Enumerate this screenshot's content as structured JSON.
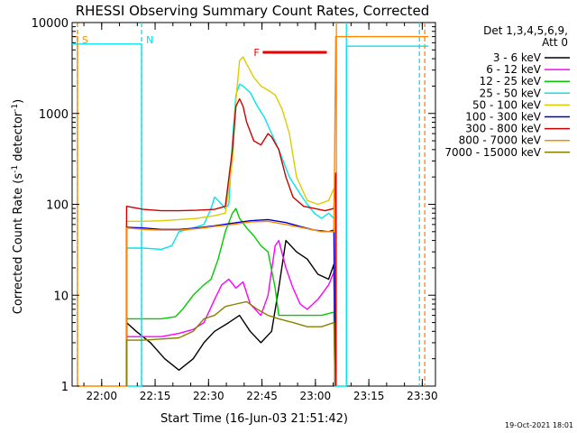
{
  "chart_data": {
    "type": "line",
    "title": "RHESSI Observing Summary Count Rates, Corrected",
    "xlabel": "Start Time (16-Jun-03 21:51:42)",
    "ylabel_prefix": "Corrected Count Rate (s",
    "ylabel_exp": "-1",
    "ylabel_suffix": " detector",
    "ylabel_suffix2": ")",
    "xaxis": {
      "unit": "minutes after 21:51:42",
      "range": [
        0,
        102
      ],
      "ticks": [
        {
          "label": "22:00",
          "t": 8.3
        },
        {
          "label": "22:15",
          "t": 23.3
        },
        {
          "label": "22:30",
          "t": 38.3
        },
        {
          "label": "22:45",
          "t": 53.3
        },
        {
          "label": "23:00",
          "t": 68.3
        },
        {
          "label": "23:15",
          "t": 83.3
        },
        {
          "label": "23:30",
          "t": 98.3
        }
      ]
    },
    "yaxis": {
      "scale": "log",
      "range": [
        1,
        10000
      ],
      "ticks": [
        {
          "label": "1",
          "v": 1
        },
        {
          "label": "10",
          "v": 10
        },
        {
          "label": "100",
          "v": 100
        },
        {
          "label": "1000",
          "v": 1000
        },
        {
          "label": "10000",
          "v": 10000
        }
      ]
    },
    "legend": {
      "header1": "Det 1,3,4,5,6,9,",
      "header2": "Att 0",
      "placement": "right"
    },
    "series": [
      {
        "name": "3 - 6 keV",
        "color": "#000000",
        "points": [
          [
            15.3,
            1
          ],
          [
            15.3,
            5
          ],
          [
            18,
            4
          ],
          [
            22,
            3
          ],
          [
            26,
            2
          ],
          [
            30,
            1.5
          ],
          [
            34,
            2
          ],
          [
            37,
            3
          ],
          [
            40,
            4
          ],
          [
            44,
            5
          ],
          [
            47,
            6
          ],
          [
            50,
            4
          ],
          [
            53,
            3
          ],
          [
            56,
            4
          ],
          [
            58,
            12
          ],
          [
            60,
            40
          ],
          [
            63,
            30
          ],
          [
            66,
            25
          ],
          [
            69,
            17
          ],
          [
            72,
            15
          ],
          [
            73.5,
            22
          ],
          [
            73.8,
            1
          ]
        ]
      },
      {
        "name": "6 - 12 keV",
        "color": "#ff00ff",
        "points": [
          [
            15.3,
            1
          ],
          [
            15.3,
            3.5
          ],
          [
            20,
            3.5
          ],
          [
            25,
            3.5
          ],
          [
            30,
            3.8
          ],
          [
            34,
            4.2
          ],
          [
            37,
            5
          ],
          [
            40,
            9
          ],
          [
            42,
            13
          ],
          [
            44,
            15
          ],
          [
            46,
            12
          ],
          [
            48,
            14
          ],
          [
            50,
            8
          ],
          [
            53,
            6
          ],
          [
            55,
            10
          ],
          [
            57,
            35
          ],
          [
            58,
            40
          ],
          [
            60,
            20
          ],
          [
            62,
            12
          ],
          [
            64,
            8
          ],
          [
            66,
            7
          ],
          [
            69,
            9
          ],
          [
            72,
            13
          ],
          [
            73.5,
            18
          ],
          [
            73.8,
            1
          ]
        ]
      },
      {
        "name": "12 - 25 keV",
        "color": "#00cc00",
        "points": [
          [
            15.3,
            1
          ],
          [
            15.3,
            5.5
          ],
          [
            20,
            5.5
          ],
          [
            25,
            5.5
          ],
          [
            29,
            5.8
          ],
          [
            31,
            7
          ],
          [
            34,
            10
          ],
          [
            37,
            13
          ],
          [
            39,
            15
          ],
          [
            41,
            25
          ],
          [
            43,
            50
          ],
          [
            45,
            80
          ],
          [
            46,
            90
          ],
          [
            47,
            70
          ],
          [
            49,
            55
          ],
          [
            51,
            45
          ],
          [
            53,
            35
          ],
          [
            55,
            30
          ],
          [
            57,
            12
          ],
          [
            58,
            6
          ],
          [
            62,
            6
          ],
          [
            66,
            6
          ],
          [
            70,
            6
          ],
          [
            73.5,
            6.5
          ],
          [
            73.8,
            1
          ]
        ]
      },
      {
        "name": "25 - 50 keV",
        "color": "#00e5ee",
        "points": [
          [
            0,
            5800
          ],
          [
            19.5,
            5800
          ],
          [
            19.5,
            1
          ],
          [
            15.3,
            1
          ],
          [
            15.3,
            33
          ],
          [
            20,
            33
          ],
          [
            25,
            32
          ],
          [
            28,
            35
          ],
          [
            30,
            50
          ],
          [
            34,
            55
          ],
          [
            37,
            60
          ],
          [
            39,
            90
          ],
          [
            40,
            120
          ],
          [
            41,
            110
          ],
          [
            43,
            90
          ],
          [
            44,
            100
          ],
          [
            45,
            500
          ],
          [
            46,
            1600
          ],
          [
            47,
            2100
          ],
          [
            48,
            2000
          ],
          [
            50,
            1700
          ],
          [
            52,
            1200
          ],
          [
            54,
            900
          ],
          [
            56,
            600
          ],
          [
            58,
            400
          ],
          [
            61,
            200
          ],
          [
            64,
            130
          ],
          [
            66,
            100
          ],
          [
            68,
            80
          ],
          [
            70,
            70
          ],
          [
            72,
            80
          ],
          [
            73.5,
            70
          ],
          [
            73.8,
            1
          ],
          [
            77,
            1
          ],
          [
            77,
            5500
          ],
          [
            100,
            5500
          ]
        ]
      },
      {
        "name": "50 - 100 keV",
        "color": "#ddcc00",
        "points": [
          [
            15.3,
            1
          ],
          [
            15.3,
            65
          ],
          [
            20,
            65
          ],
          [
            25,
            66
          ],
          [
            30,
            68
          ],
          [
            35,
            70
          ],
          [
            40,
            75
          ],
          [
            43,
            80
          ],
          [
            45,
            300
          ],
          [
            46,
            1400
          ],
          [
            47,
            3800
          ],
          [
            48,
            4200
          ],
          [
            49,
            3500
          ],
          [
            51,
            2500
          ],
          [
            53,
            2000
          ],
          [
            55,
            1800
          ],
          [
            57,
            1600
          ],
          [
            59,
            1100
          ],
          [
            61,
            600
          ],
          [
            63,
            200
          ],
          [
            66,
            110
          ],
          [
            69,
            100
          ],
          [
            72,
            110
          ],
          [
            73.5,
            150
          ],
          [
            73.8,
            1
          ]
        ]
      },
      {
        "name": "100 - 300 keV",
        "color": "#0000cc",
        "points": [
          [
            15.3,
            1
          ],
          [
            15.3,
            56
          ],
          [
            20,
            55
          ],
          [
            25,
            53
          ],
          [
            30,
            53
          ],
          [
            35,
            55
          ],
          [
            40,
            58
          ],
          [
            45,
            62
          ],
          [
            50,
            66
          ],
          [
            55,
            68
          ],
          [
            60,
            63
          ],
          [
            64,
            57
          ],
          [
            68,
            52
          ],
          [
            72,
            50
          ],
          [
            73.5,
            52
          ],
          [
            73.8,
            1
          ]
        ]
      },
      {
        "name": "300 - 800 keV",
        "color": "#cc0000",
        "points": [
          [
            15.3,
            1
          ],
          [
            15.3,
            95
          ],
          [
            20,
            88
          ],
          [
            25,
            85
          ],
          [
            30,
            85
          ],
          [
            35,
            86
          ],
          [
            40,
            88
          ],
          [
            43,
            95
          ],
          [
            45,
            400
          ],
          [
            46,
            1200
          ],
          [
            47,
            1450
          ],
          [
            48,
            1200
          ],
          [
            49,
            800
          ],
          [
            51,
            500
          ],
          [
            53,
            450
          ],
          [
            55,
            600
          ],
          [
            56,
            550
          ],
          [
            58,
            400
          ],
          [
            60,
            200
          ],
          [
            62,
            120
          ],
          [
            65,
            95
          ],
          [
            68,
            90
          ],
          [
            71,
            85
          ],
          [
            73.5,
            90
          ],
          [
            74,
            220
          ],
          [
            74,
            1
          ]
        ]
      },
      {
        "name": "800 - 7000 keV",
        "color": "#ff8800",
        "points": [
          [
            0,
            7000
          ],
          [
            1.5,
            7000
          ],
          [
            1.5,
            1
          ],
          [
            15.3,
            1
          ],
          [
            15.3,
            55
          ],
          [
            20,
            53
          ],
          [
            25,
            52
          ],
          [
            30,
            52
          ],
          [
            35,
            54
          ],
          [
            40,
            57
          ],
          [
            45,
            60
          ],
          [
            50,
            64
          ],
          [
            55,
            65
          ],
          [
            60,
            60
          ],
          [
            65,
            55
          ],
          [
            70,
            50
          ],
          [
            73.5,
            50
          ],
          [
            74,
            7000
          ],
          [
            100,
            7000
          ]
        ]
      },
      {
        "name": "7000 - 15000 keV",
        "color": "#8b7f00",
        "points": [
          [
            15.3,
            1
          ],
          [
            15.3,
            3.2
          ],
          [
            20,
            3.2
          ],
          [
            25,
            3.3
          ],
          [
            30,
            3.4
          ],
          [
            34,
            4
          ],
          [
            37,
            5.5
          ],
          [
            40,
            6
          ],
          [
            43,
            7.5
          ],
          [
            46,
            8
          ],
          [
            49,
            8.5
          ],
          [
            52,
            7
          ],
          [
            55,
            6
          ],
          [
            58,
            5.5
          ],
          [
            62,
            5
          ],
          [
            66,
            4.5
          ],
          [
            70,
            4.5
          ],
          [
            73.5,
            5
          ],
          [
            73.8,
            1
          ]
        ]
      }
    ],
    "markers": [
      {
        "label": "S",
        "color": "#ff8800",
        "t": 1.5,
        "style": "dashed"
      },
      {
        "label": "N",
        "color": "#00e5ee",
        "t": 19.5,
        "style": "dashed"
      },
      {
        "label": "",
        "color": "#ff8800",
        "t": 74.2,
        "style": "solid"
      },
      {
        "label": "",
        "color": "#00e5ee",
        "t": 77,
        "style": "solid"
      },
      {
        "label": "",
        "color": "#00e5ee",
        "t": 97.5,
        "style": "dashed"
      },
      {
        "label": "",
        "color": "#ff8800",
        "t": 99,
        "style": "dashed"
      }
    ],
    "flare_bar": {
      "label": "F",
      "color": "#ee0000",
      "t_start": 53.5,
      "t_end": 71.5,
      "level": 4700
    }
  },
  "footer": {
    "timestamp": "19-Oct-2021 18:01"
  }
}
